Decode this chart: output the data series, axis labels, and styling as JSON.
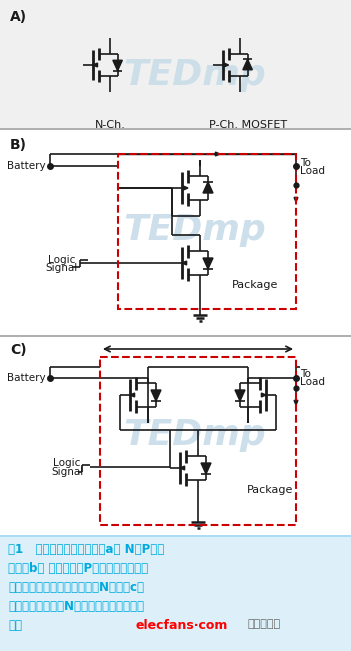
{
  "bg_color": "#ffffff",
  "section_a_label": "A)",
  "section_b_label": "B)",
  "section_c_label": "C)",
  "nch_label": "N-Ch.",
  "pch_label": "P-Ch. MOSFET",
  "battery_label": "Battery",
  "logic_label1": "Logic",
  "logic_label2": "Signal",
  "package_label": "Package",
  "to_load_label1": "To",
  "to_load_label2": "Load",
  "caption_line1": "囱1   傳統負載開關表現顯示a） N和P溝道",
  "caption_line2": "描述，b） 在高側、由P溝道組成的簡單負",
  "caption_line3": "載開關與通過邏輯信號驅動的N溝道，c）",
  "caption_line4": "當不啟用時高側雙N溝道提供了二極體電流",
  "caption_line5": "阻斷",
  "elecfans_text": "elecfans·com",
  "elecfans_sub": "电子发烧友",
  "caption_color": "#00aadd",
  "elecfans_color": "#ff0000",
  "watermark_color": "#c8dce8",
  "dashed_box_color": "#cc0000",
  "line_color": "#1a1a1a",
  "section_bg_a": "#f0f0f0"
}
